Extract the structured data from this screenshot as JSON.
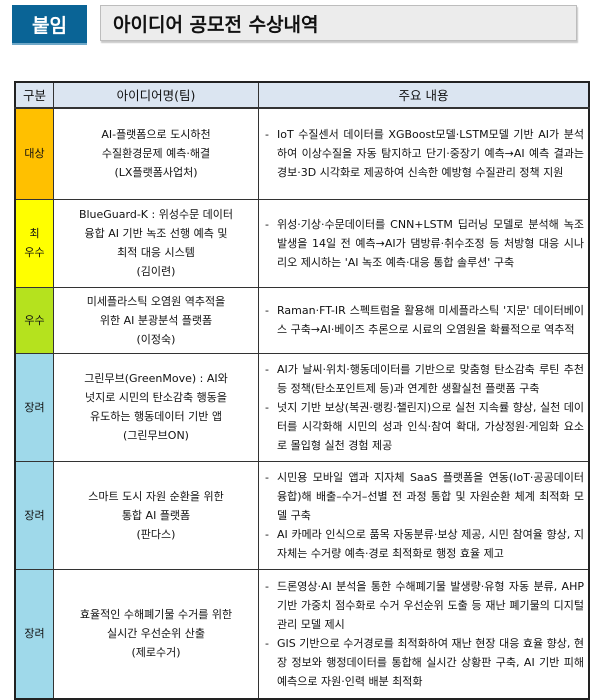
{
  "header": {
    "badge": "붙임",
    "title": "아이디어 공모전 수상내역"
  },
  "table": {
    "columns": [
      "구분",
      "아이디어명(팀)",
      "주요 내용"
    ],
    "rows": [
      {
        "category": "대상",
        "category_color": "#ffc000",
        "idea": [
          "AI-플랫폼으로 도시하천",
          "수질환경문제 예측·해결",
          "(LX플랫폼사업처)"
        ],
        "content": [
          "IoT 수질센서 데이터를 XGBoost모델·LSTM모델 기반 AI가 분석하여 이상수질을 자동 탐지하고 단기·중장기 예측→AI 예측 결과는 경보·3D 시각화로 제공하여 신속한 예방형 수질관리 정책 지원"
        ]
      },
      {
        "category": "최\n우수",
        "category_color": "#ffff00",
        "idea": [
          "BlueGuard-K : 위성수문 데이터",
          "융합 AI 기반 녹조 선행 예측 및",
          "최적 대응 시스템",
          "(김이련)"
        ],
        "content": [
          "위성·기상·수문데이터를 CNN+LSTM 딥러닝 모델로 분석해 녹조 발생을 14일 전 예측→AI가 댐방류·취수조정 등 처방형 대응 시나리오 제시하는 'AI 녹조 예측·대응 통합 솔루션' 구축"
        ]
      },
      {
        "category": "우수",
        "category_color": "#b5e21e",
        "idea": [
          "미세플라스틱 오염원 역추적을",
          "위한 AI 분광분석 플랫폼",
          "(이정숙)"
        ],
        "content": [
          "Raman·FT-IR 스펙트럼을 활용해 미세플라스틱 '지문' 데이터베이스 구축→AI·베이즈 추론으로 시료의 오염원을 확률적으로 역추적"
        ]
      },
      {
        "category": "장려",
        "category_color": "#9fd9ea",
        "idea": [
          "그린무브(GreenMove) : AI와",
          "넛지로 시민의 탄소감축 행동을",
          "유도하는 행동데이터 기반 앱",
          "(그린무브ON)"
        ],
        "content": [
          "AI가 날씨·위치·행동데이터를 기반으로 맞춤형 탄소감축 루틴 추천 등 정책(탄소포인트제 등)과 연계한 생활실천 플랫폼 구축",
          "넛지 기반 보상(복권·랭킹·챌린지)으로 실천 지속률 향상, 실천 데이터를 시각화해 시민의 성과 인식·참여 확대, 가상정원·게임화 요소로 몰입형 실천 경험 제공"
        ]
      },
      {
        "category": "장려",
        "category_color": "#9fd9ea",
        "idea": [
          "스마트 도시 자원 순환을 위한",
          "통합 AI 플랫폼",
          "(판다스)"
        ],
        "content": [
          "시민용 모바일 앱과 지자체 SaaS 플랫폼을 연동(IoT·공공데이터 융합)해 배출–수거–선별 전 과정 통합 및 자원순환 체계 최적화 모델 구축",
          "AI 카메라 인식으로 품목 자동분류·보상 제공, 시민 참여율 향상, 지자체는 수거량 예측·경로 최적화로 행정 효율 제고"
        ]
      },
      {
        "category": "장려",
        "category_color": "#9fd9ea",
        "idea": [
          "효율적인 수해폐기물 수거를 위한",
          "실시간 우선순위 산출",
          "(제로수거)"
        ],
        "content": [
          "드론영상·AI 분석을 통한 수해폐기물 발생량·유형 자동 분류, AHP 기반 가중치 점수화로 수거 우선순위 도출 등 재난 폐기물의 디지털 관리 모델 제시",
          "GIS 기반으로 수거경로를 최적화하여 재난 현장 대응 효율 향상, 현장 정보와 행정데이터를 통합해 실시간 상황판 구축, AI 기반 피해예측으로 자원·인력 배분 최적화"
        ]
      }
    ]
  }
}
